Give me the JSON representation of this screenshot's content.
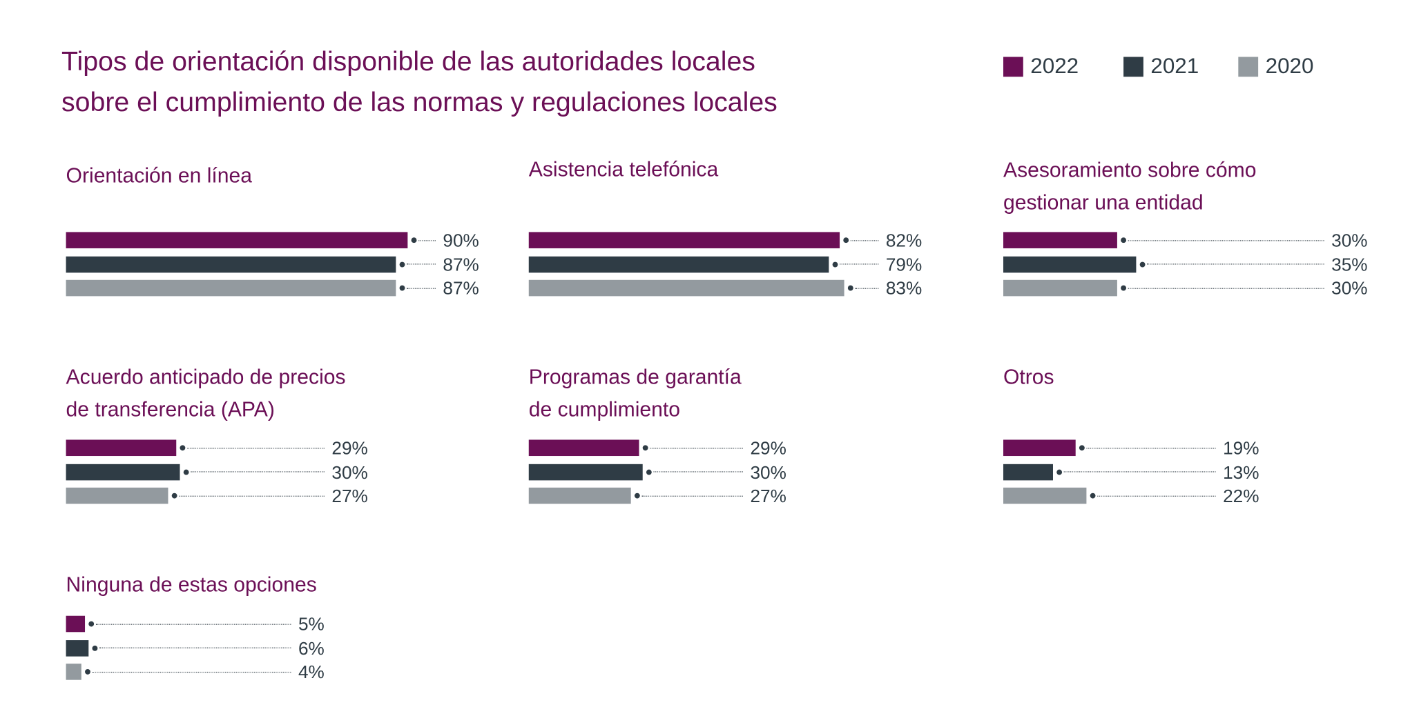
{
  "chart_data": {
    "type": "bar",
    "orientation": "horizontal",
    "title": "Tipos de orientación disponible de las autoridades locales sobre el cumplimiento de las normas y regulaciones locales",
    "title_lines": [
      "Tipos de orientación disponible de las autoridades locales",
      "sobre el cumplimiento de las normas y regulaciones locales"
    ],
    "legend": {
      "position": "top-right",
      "entries": [
        {
          "name": "2022",
          "color": "#6b0f56"
        },
        {
          "name": "2021",
          "color": "#2f3c45"
        },
        {
          "name": "2020",
          "color": "#939a9f"
        }
      ]
    },
    "unit": "%",
    "xlim": [
      0,
      100
    ],
    "grid": false,
    "panels": [
      {
        "title_lines": [
          "Orientación en línea"
        ],
        "values": [
          90,
          87,
          87
        ],
        "labels": [
          "90%",
          "87%",
          "87%"
        ]
      },
      {
        "title_lines": [
          "Asistencia telefónica"
        ],
        "values": [
          82,
          79,
          83
        ],
        "labels": [
          "82%",
          "79%",
          "83%"
        ]
      },
      {
        "title_lines": [
          "Asesoramiento sobre cómo",
          "gestionar una entidad"
        ],
        "values": [
          30,
          35,
          30
        ],
        "labels": [
          "30%",
          "35%",
          "30%"
        ]
      },
      {
        "title_lines": [
          "Acuerdo anticipado de precios",
          "de transferencia (APA)"
        ],
        "values": [
          29,
          30,
          27
        ],
        "labels": [
          "29%",
          "30%",
          "27%"
        ]
      },
      {
        "title_lines": [
          "Programas de garantía",
          "de cumplimiento"
        ],
        "values": [
          29,
          30,
          27
        ],
        "labels": [
          "29%",
          "30%",
          "27%"
        ]
      },
      {
        "title_lines": [
          "Otros"
        ],
        "values": [
          19,
          13,
          22
        ],
        "labels": [
          "19%",
          "13%",
          "22%"
        ]
      },
      {
        "title_lines": [
          "Ninguna de estas opciones"
        ],
        "values": [
          5,
          6,
          4
        ],
        "labels": [
          "5%",
          "6%",
          "4%"
        ]
      }
    ]
  }
}
